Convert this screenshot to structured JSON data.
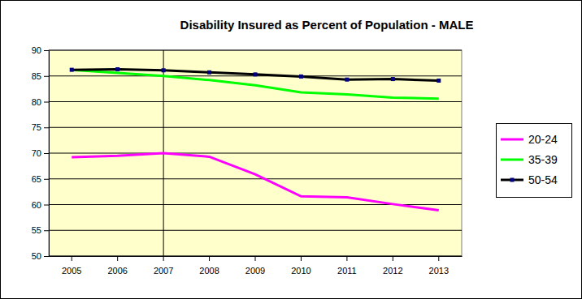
{
  "chart_data": {
    "type": "line",
    "title": "Disability Insured as Percent of Population - MALE",
    "categories": [
      "2005",
      "2006",
      "2007",
      "2008",
      "2009",
      "2010",
      "2011",
      "2012",
      "2013"
    ],
    "series": [
      {
        "name": "20-24",
        "color": "#ff00ff",
        "marker": "none",
        "values": [
          69.2,
          69.5,
          70.0,
          69.3,
          65.9,
          61.6,
          61.4,
          60.1,
          58.9
        ]
      },
      {
        "name": "35-39",
        "color": "#00ff00",
        "marker": "none",
        "values": [
          86.2,
          85.6,
          85.0,
          84.2,
          83.2,
          81.8,
          81.4,
          80.8,
          80.6
        ]
      },
      {
        "name": "50-54",
        "color": "#000000",
        "marker": "square",
        "values": [
          86.2,
          86.3,
          86.1,
          85.7,
          85.3,
          84.9,
          84.3,
          84.4,
          84.1
        ]
      }
    ],
    "ylim": [
      50,
      90
    ],
    "yticks": [
      50,
      55,
      60,
      65,
      70,
      75,
      80,
      85,
      90
    ],
    "grid": true,
    "legend": "right",
    "vertical_line": "2007"
  }
}
